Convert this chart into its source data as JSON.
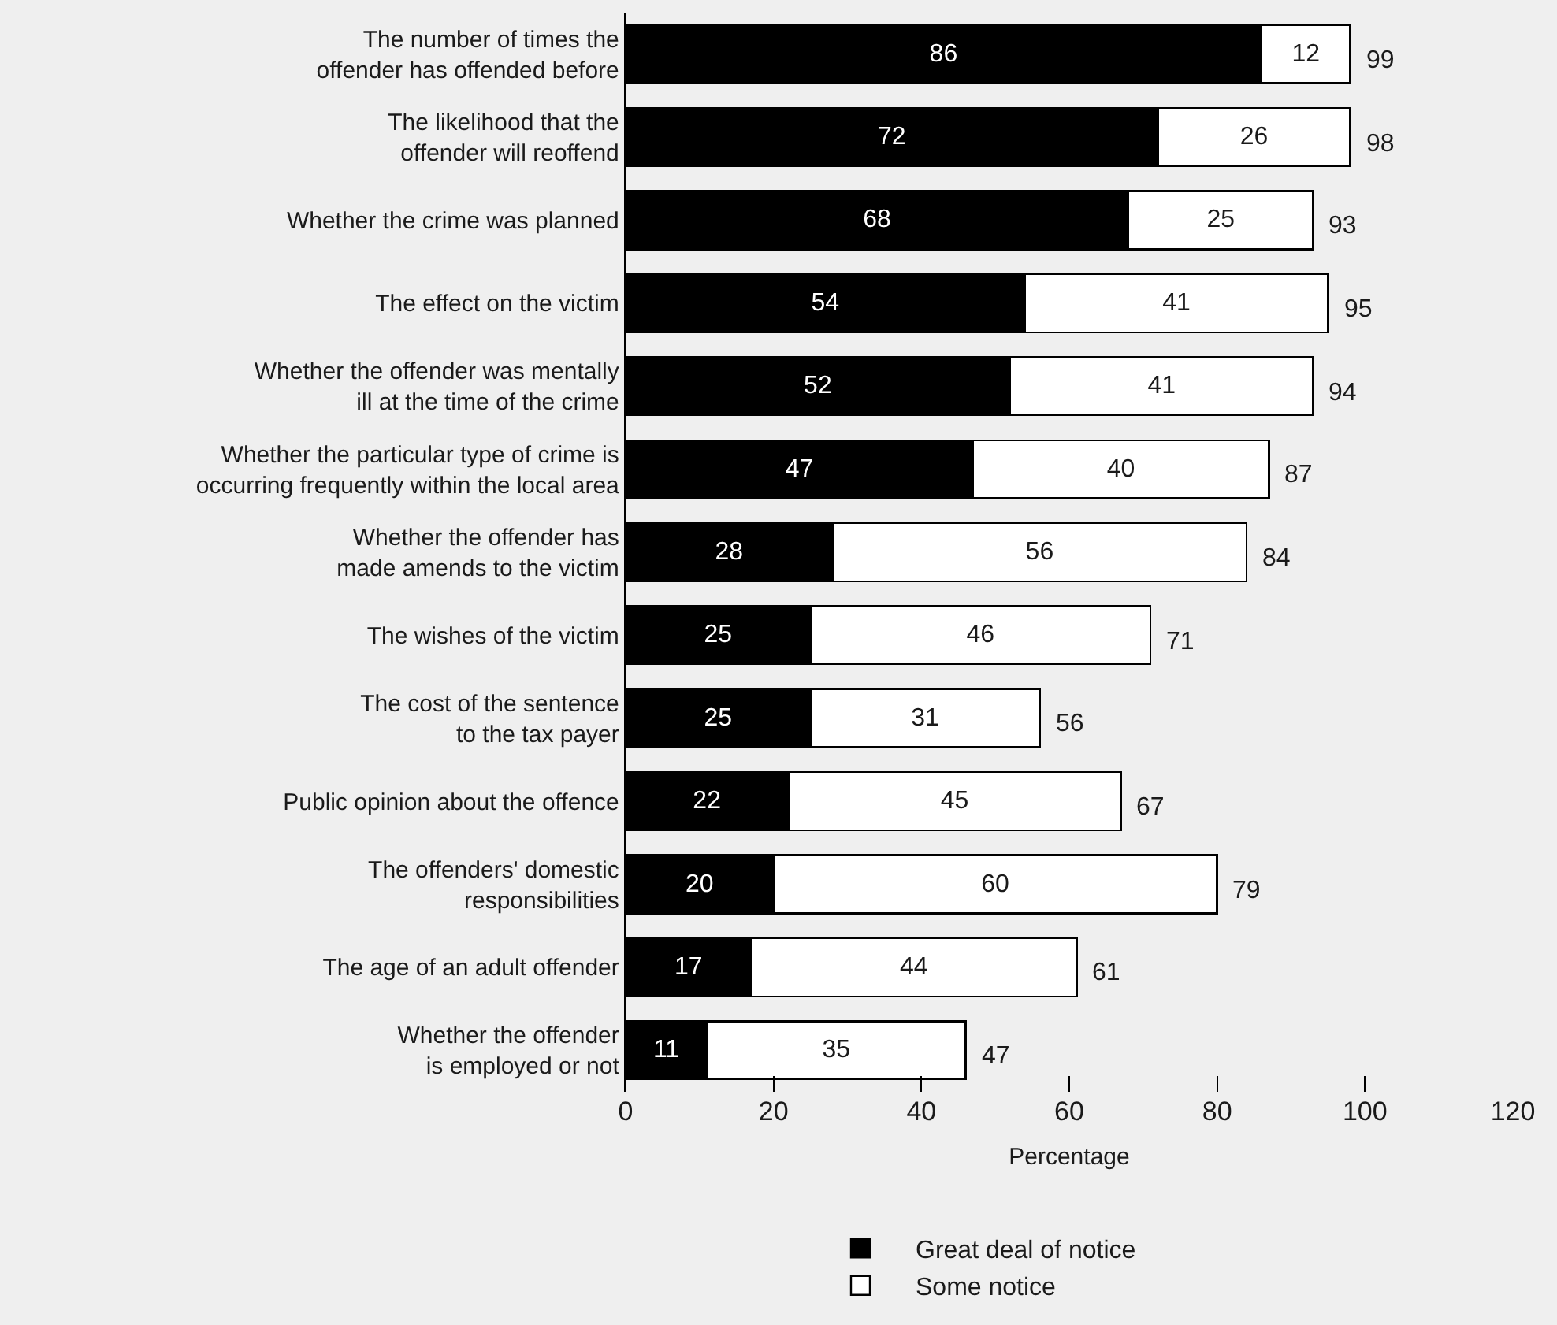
{
  "chart_data": {
    "type": "bar",
    "orientation": "horizontal",
    "stacked": true,
    "xlabel": "Percentage",
    "categories": [
      "The number of times the offender has offended before",
      "The likelihood that the offender will reoffend",
      "Whether the crime was planned",
      "The effect on the victim",
      "Whether the offender was mentally ill at the time of the crime",
      "Whether the particular type of crime is occurring frequently within the local area",
      "Whether the offender has made amends to the victim",
      "The wishes of the victim",
      "The cost of the sentence to the tax payer",
      "Public opinion about the offence",
      "The offenders' domestic responsibilities",
      "The age of an adult offender",
      "Whether the offender is employed or not"
    ],
    "series": [
      {
        "name": "Great deal of notice",
        "color": "#000000",
        "values": [
          86,
          72,
          68,
          54,
          52,
          47,
          28,
          25,
          25,
          22,
          20,
          17,
          11
        ]
      },
      {
        "name": "Some notice",
        "color": "#ffffff",
        "values": [
          12,
          26,
          25,
          41,
          41,
          40,
          56,
          46,
          31,
          45,
          60,
          44,
          35
        ]
      }
    ],
    "totals": [
      "99",
      "98",
      "93",
      "95",
      "94",
      "87",
      "84",
      "71",
      "56",
      "67",
      "79",
      "61",
      "47"
    ],
    "data_labels": true,
    "xlim": [
      0,
      120
    ],
    "xticks": [
      0,
      20,
      40,
      60,
      80,
      100,
      120
    ],
    "grid": false,
    "legend": "bottom"
  }
}
